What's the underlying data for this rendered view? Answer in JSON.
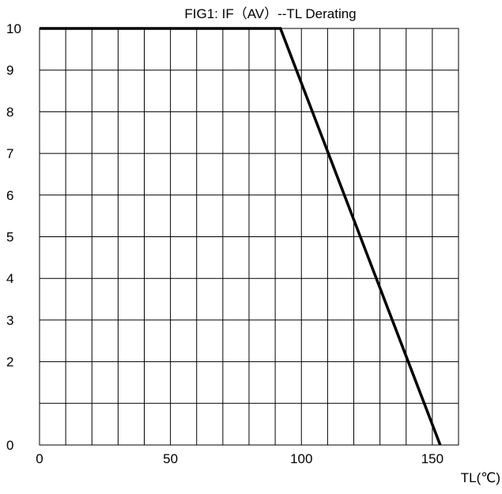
{
  "chart_data": {
    "type": "line",
    "title": "FIG1: IF（AV）--TL  Derating",
    "xlabel": "TL(℃)",
    "ylabel": "",
    "xlim": [
      0,
      160
    ],
    "ylim": [
      0,
      10
    ],
    "x_grid_step": 10,
    "y_grid_step": 1,
    "x_ticks": [
      {
        "value": 0,
        "label": "0"
      },
      {
        "value": 50,
        "label": "50"
      },
      {
        "value": 100,
        "label": "100"
      },
      {
        "value": 150,
        "label": "150"
      }
    ],
    "y_ticks": [
      {
        "value": 0,
        "label": "0"
      },
      {
        "value": 2,
        "label": "2"
      },
      {
        "value": 3,
        "label": "3"
      },
      {
        "value": 4,
        "label": "4"
      },
      {
        "value": 5,
        "label": "5"
      },
      {
        "value": 6,
        "label": "6"
      },
      {
        "value": 7,
        "label": "7"
      },
      {
        "value": 8,
        "label": "8"
      },
      {
        "value": 9,
        "label": "9"
      },
      {
        "value": 10,
        "label": "10"
      }
    ],
    "grid": true,
    "legend": "none",
    "series": [
      {
        "color": "#000000",
        "points": [
          {
            "x": 0,
            "y": 10
          },
          {
            "x": 92,
            "y": 10
          },
          {
            "x": 153,
            "y": 0
          }
        ]
      }
    ]
  }
}
